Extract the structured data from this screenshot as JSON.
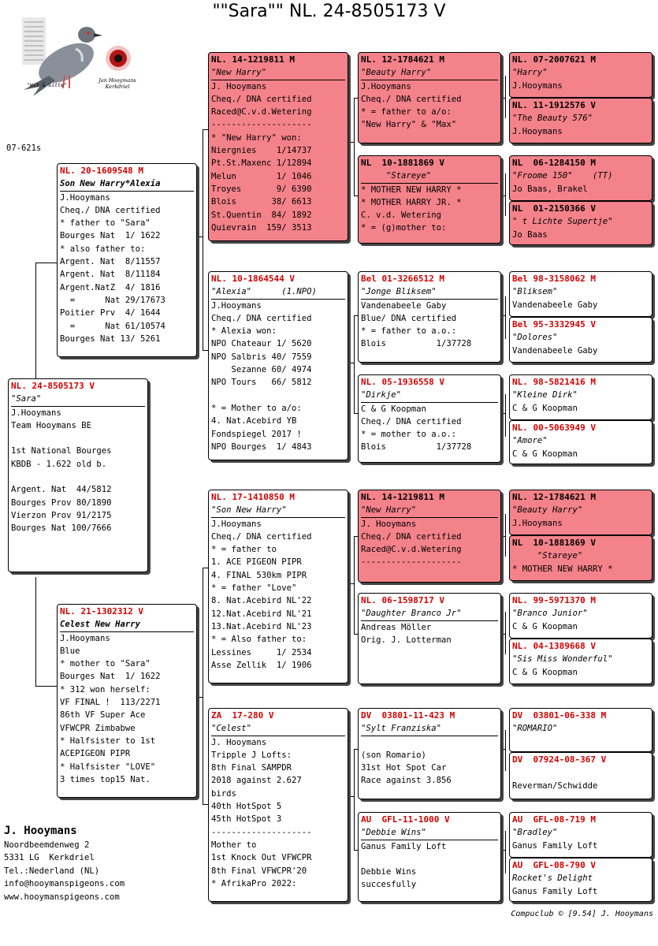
{
  "title": "\"\"Sara\"\"  NL. 24-8505173 V",
  "side_code": "07-621s",
  "logo": {
    "caption_left": "\"Wit & Gitte\"",
    "caption_right": "Jan Hooymans Kerkdriel"
  },
  "boxes": {
    "subject": {
      "ring": "NL. 24-8505173 V",
      "name": "\"Sara\"",
      "lines": [
        "J.Hooymans",
        "Team Hooymans BE",
        "",
        "1st National Bourges",
        "KBDB - 1.622 old b.",
        "",
        "Argent. Nat  44/5812",
        "Bourges Prov 80/1890",
        "Vierzon Prov 91/2175",
        "Bourges Nat 100/7666"
      ]
    },
    "sire": {
      "ring": "NL. 20-1609548 M",
      "name": "Son New Harry*Alexia",
      "lines": [
        "J.Hooymans",
        "Cheq./ DNA certified",
        "* father to \"Sara\"",
        "Bourges Nat  1/ 1622",
        "* also father to:",
        "Argent. Nat  8/11557",
        "Argent. Nat  8/11184",
        "Argent.NatZ  4/ 1816",
        "  =      Nat 29/17673",
        "Poitier Prv  4/ 1644",
        "  =      Nat 61/10574",
        "Bourges Nat 13/ 5261"
      ]
    },
    "dam": {
      "ring": "NL. 21-1302312 V",
      "name": "Celest New Harry",
      "lines": [
        "J.Hooymans",
        "Blue",
        "* mother to \"Sara\"",
        "Bourges Nat  1/ 1622",
        "* 312 won herself:",
        "VF FINAL !  113/2271",
        "86th VF Super Ace",
        "VFWCPR Zimbabwe",
        "* Halfsister to 1st",
        "ACEPIGEON PIPR",
        "* Halfsister \"LOVE\"",
        "3 times top15 Nat."
      ]
    },
    "ss": {
      "ring": "NL. 14-1219811 M",
      "name": "\"New Harry\"",
      "lines": [
        "J. Hooymans",
        "Cheq./ DNA certified",
        "Raced@C.v.d.Wetering",
        "--------------------",
        "* \"New Harry\" won:",
        "Niergnies    1/14737",
        "Pt.St.Maxenc 1/12894",
        "Melun        1/ 1046",
        "Troyes       9/ 6390",
        "Blois       38/ 6613",
        "St.Quentin  84/ 1892",
        "Quievrain  159/ 3513"
      ]
    },
    "sd": {
      "ring": "NL. 10-1864544 V",
      "name": "\"Alexia\"      (1.NPO)",
      "lines": [
        "J.Hooymans",
        "Cheq./ DNA certified",
        "* Alexia won:",
        "NPO Chateaur 1/ 5620",
        "NPO Salbris 40/ 7559",
        "    Sezanne 60/ 4974",
        "NPO Tours   66/ 5812",
        "",
        "* = Mother to a/o:",
        "4. Nat.Acebird YB",
        "Fondspiegel 2017 !",
        "NPO Bourges  1/ 4843"
      ]
    },
    "ds": {
      "ring": "NL. 17-1410850 M",
      "name": "\"Son New Harry\"",
      "lines": [
        "J.Hooymans",
        "Cheq./ DNA certified",
        "* = father to",
        "1. ACE PIGEON PIPR",
        "4. FINAL 530km PIPR",
        "* = father \"Love\"",
        "8. Nat.Acebird NL'22",
        "12.Nat.Acebird NL'21",
        "13.Nat.Acebird NL'23",
        "* = Also father to:",
        "Lessines     1/ 2534",
        "Asse Zellik  1/ 1906"
      ]
    },
    "dd": {
      "ring": "ZA  17-280 V",
      "name": "\"Celest\"",
      "lines": [
        "J. Hooymans",
        "Tripple J Lofts:",
        "8th Final SAMPDR",
        "2018 against 2.627",
        "birds",
        "40th HotSpot 5",
        "45th HotSpot 3",
        "--------------------",
        "Mother to",
        "1st Knock Out VFWCPR",
        "8th Final VFWCPR'20",
        "* AfrikaPro 2022:"
      ]
    },
    "sss": {
      "ring": "NL. 12-1784621 M",
      "name": "\"Beauty Harry\"",
      "lines": [
        "J.Hooymans",
        "Cheq./ DNA certified",
        "* = father to a/o:",
        "\"New Harry\" & \"Max\""
      ]
    },
    "ssd": {
      "ring": "NL  10-1881869 V",
      "name": "     \"Stareye\"",
      "lines": [
        "* MOTHER NEW HARRY *",
        "* MOTHER HARRY JR. *",
        "C. v.d. Wetering",
        "* = (g)mother to:"
      ]
    },
    "sds": {
      "ring": "Bel 01-3266512 M",
      "name": "\"Jonge Bliksem\"",
      "lines": [
        "Vandenabeele Gaby",
        "Blue/ DNA certified",
        "* = father to a.o.:",
        "Blois          1/37728"
      ]
    },
    "sdd": {
      "ring": "NL. 05-1936558 V",
      "name": "\"Dirkje\"",
      "lines": [
        "C & G Koopman",
        "Cheq./ DNA certified",
        "* = mother to a.o.:",
        "Blois          1/37728"
      ]
    },
    "dss": {
      "ring": "NL. 14-1219811 M",
      "name": "\"New Harry\"",
      "lines": [
        "J. Hooymans",
        "Cheq./ DNA certified",
        "Raced@C.v.d.Wetering",
        "--------------------"
      ]
    },
    "dsd": {
      "ring": "NL. 06-1598717 V",
      "name": "\"Daughter Branco Jr\"",
      "lines": [
        "Andreas Möller",
        "Orig. J. Lotterman"
      ]
    },
    "dds": {
      "ring": "DV  03801-11-423 M",
      "name": "\"Sylt Franziska\"",
      "lines": [
        "",
        "(son Romario)",
        "31st Hot Spot Car",
        "Race against 3.856"
      ]
    },
    "ddd": {
      "ring": "AU  GFL-11-1000 V",
      "name": "\"Debbie Wins\"",
      "lines": [
        "Ganus Family Loft",
        "",
        "Debbie Wins",
        "succesfully"
      ]
    },
    "g1": {
      "ring": "NL. 07-2007621 M",
      "name": "\"Harry\"",
      "lines": [
        "J.Hooymans"
      ]
    },
    "g2": {
      "ring": "NL. 11-1912576 V",
      "name": "\"The Beauty 576\"",
      "lines": [
        "J.Hooymans"
      ]
    },
    "g3": {
      "ring": "NL  06-1284150 M",
      "name": "\"Froome 150\"    (TT)",
      "lines": [
        "Jo Baas, Brakel"
      ]
    },
    "g4": {
      "ring": "NL  01-2150366 V",
      "name": "\" t Lichte Supertje\"",
      "lines": [
        "Jo Baas"
      ]
    },
    "g5": {
      "ring": "Bel 98-3158062 M",
      "name": "\"Bliksem\"",
      "lines": [
        "Vandenabeele Gaby"
      ]
    },
    "g6": {
      "ring": "Bel 95-3332945 V",
      "name": "\"Dolores\"",
      "lines": [
        "Vandenabeele Gaby"
      ]
    },
    "g7": {
      "ring": "NL. 98-5821416 M",
      "name": "\"Kleine Dirk\"",
      "lines": [
        "C & G Koopman"
      ]
    },
    "g8": {
      "ring": "NL. 00-5063949 V",
      "name": "\"Amore\"",
      "lines": [
        "C & G Koopman"
      ]
    },
    "g9": {
      "ring": "NL. 12-1784621 M",
      "name": "\"Beauty Harry\"",
      "lines": [
        "J.Hooymans"
      ]
    },
    "g10": {
      "ring": "NL  10-1881869 V",
      "name": "     \"Stareye\"",
      "lines": [
        "* MOTHER NEW HARRY *"
      ]
    },
    "g11": {
      "ring": "NL. 99-5971370 M",
      "name": "\"Branco Junior\"",
      "lines": [
        "C & G Koopman"
      ]
    },
    "g12": {
      "ring": "NL. 04-1389668 V",
      "name": "\"Sis Miss Wonderful\"",
      "lines": [
        "C & G Koopman"
      ]
    },
    "g13": {
      "ring": "DV  03801-06-338 M",
      "name": "\"ROMARIO\"",
      "lines": []
    },
    "g14": {
      "ring": "DV  07924-08-367 V",
      "name": "",
      "lines": [
        "",
        "Reverman/Schwidde"
      ]
    },
    "g15": {
      "ring": "AU  GFL-08-719 M",
      "name": "\"Bradley\"",
      "lines": [
        "Ganus Family Loft"
      ]
    },
    "g16": {
      "ring": "AU  GFL-08-790 V",
      "name": "Rocket's Delight",
      "lines": [
        "Ganus Family Loft"
      ]
    }
  },
  "breeder": {
    "name": "J. Hooymans",
    "address1": "Noordbeemdenweg 2",
    "address2": "5331 LG  Kerkdriel",
    "tel": "Tel.:Nederland (NL)",
    "email": "info@hooymanspigeons.com",
    "web": "www.hooymanspigeons.com"
  },
  "footer": "Compuclub © [9.54]  J. Hooymans",
  "colors": {
    "highlight": "#f4828a",
    "ring_red": "#d40000"
  }
}
